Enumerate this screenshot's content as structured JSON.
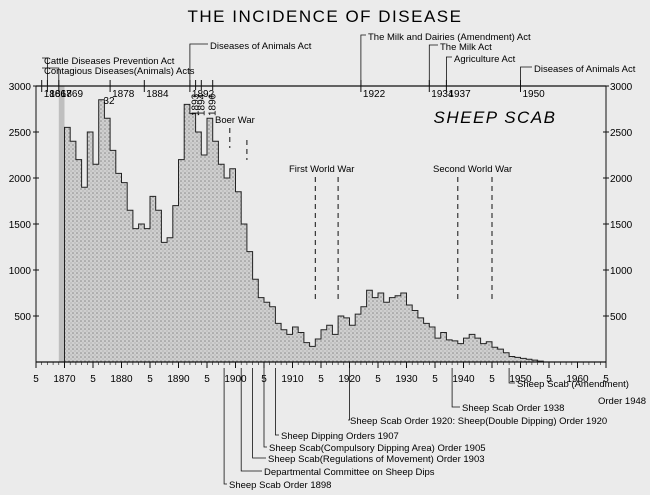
{
  "chart_data": {
    "type": "bar",
    "title": "THE INCIDENCE OF DISEASE",
    "series_label": "SHEEP SCAB",
    "xlabel": "",
    "ylabel": "",
    "ylim": [
      0,
      3000
    ],
    "xlim": [
      1865,
      1965
    ],
    "grid": false,
    "y_ticks": [
      {
        "v": 500,
        "label": "500"
      },
      {
        "v": 1000,
        "label": "1000"
      },
      {
        "v": 1500,
        "label": "1500"
      },
      {
        "v": 2000,
        "label": "2000"
      },
      {
        "v": 2500,
        "label": "2500"
      },
      {
        "v": 3000,
        "label": "3000"
      }
    ],
    "x_ticks": [
      {
        "v": 1865,
        "label": "5"
      },
      {
        "v": 1870,
        "label": "1870"
      },
      {
        "v": 1875,
        "label": "5"
      },
      {
        "v": 1880,
        "label": "1880"
      },
      {
        "v": 1885,
        "label": "5"
      },
      {
        "v": 1890,
        "label": "1890"
      },
      {
        "v": 1895,
        "label": "5"
      },
      {
        "v": 1900,
        "label": "1900"
      },
      {
        "v": 1905,
        "label": "5"
      },
      {
        "v": 1910,
        "label": "1910"
      },
      {
        "v": 1915,
        "label": "5"
      },
      {
        "v": 1920,
        "label": "1920"
      },
      {
        "v": 1925,
        "label": "5"
      },
      {
        "v": 1930,
        "label": "1930"
      },
      {
        "v": 1935,
        "label": "5"
      },
      {
        "v": 1940,
        "label": "1940"
      },
      {
        "v": 1945,
        "label": "5"
      },
      {
        "v": 1950,
        "label": "1950"
      },
      {
        "v": 1955,
        "label": "5"
      },
      {
        "v": 1960,
        "label": "1960"
      },
      {
        "v": 1965,
        "label": "5"
      }
    ],
    "series": [
      {
        "x": [
          1867,
          1868,
          1869,
          1870,
          1871,
          1872,
          1873,
          1874,
          1875,
          1876,
          1877,
          1878,
          1879,
          1880,
          1881,
          1882,
          1883,
          1884,
          1885,
          1886,
          1887,
          1888,
          1889,
          1890,
          1891,
          1892,
          1893,
          1894,
          1895,
          1896,
          1897,
          1898,
          1899,
          1900,
          1901,
          1902,
          1903,
          1904,
          1905,
          1906,
          1907,
          1908,
          1909,
          1910,
          1911,
          1912,
          1913,
          1914,
          1915,
          1916,
          1917,
          1918,
          1919,
          1920,
          1921,
          1922,
          1923,
          1924,
          1925,
          1926,
          1927,
          1928,
          1929,
          1930,
          1931,
          1932,
          1933,
          1934,
          1935,
          1936,
          1937,
          1938,
          1939,
          1940,
          1941,
          1942,
          1943,
          1944,
          1945,
          1946,
          1947,
          1948,
          1949,
          1950,
          1951,
          1952,
          1953
        ],
        "values": [
          0,
          0,
          0,
          2550,
          2400,
          2200,
          1900,
          2500,
          2150,
          2850,
          2650,
          2300,
          2050,
          1950,
          1650,
          1450,
          1500,
          1450,
          1800,
          1650,
          1300,
          1350,
          1700,
          2200,
          2800,
          2700,
          2500,
          2250,
          2650,
          2400,
          2150,
          2000,
          2100,
          1850,
          1500,
          1200,
          900,
          700,
          650,
          600,
          420,
          350,
          300,
          380,
          320,
          210,
          170,
          250,
          350,
          400,
          300,
          500,
          480,
          400,
          520,
          600,
          780,
          700,
          750,
          650,
          700,
          720,
          750,
          620,
          560,
          480,
          420,
          380,
          260,
          320,
          240,
          230,
          200,
          260,
          300,
          260,
          200,
          220,
          160,
          140,
          100,
          60,
          50,
          40,
          30,
          20,
          10
        ]
      }
    ],
    "top_axis": [
      {
        "year": 1866,
        "label": "1866"
      },
      {
        "year": 1867,
        "label": "1867"
      },
      {
        "year": 1869,
        "label": "1869"
      },
      {
        "year": 1878,
        "label": "1878"
      },
      {
        "year": 1884,
        "label": "1884"
      },
      {
        "year": 1892,
        "label": "1892"
      },
      {
        "year": 1922,
        "label": "1922"
      },
      {
        "year": 1934,
        "label": "1934"
      },
      {
        "year": 1937,
        "label": "1937"
      },
      {
        "year": 1950,
        "label": "1950"
      }
    ],
    "top_axis_vertical": [
      {
        "year": 1896,
        "label": "1896"
      },
      {
        "year": 1894,
        "label": "1894"
      },
      {
        "year": 1893,
        "label": "1893"
      }
    ],
    "top_axis_small": {
      "year": 1877,
      "label": "32"
    },
    "acts": [
      {
        "label": "Cattle Diseases Prevention Act"
      },
      {
        "label": "Contagious Diseases(Animals) Acts"
      },
      {
        "label": "Diseases of Animals Act"
      },
      {
        "label": "The Milk and Dairies (Amendment) Act"
      },
      {
        "label": "The Milk Act"
      },
      {
        "label": "Agriculture Act"
      },
      {
        "label": "Diseases of Animals Act"
      }
    ],
    "wars": [
      {
        "label": "Boer War"
      },
      {
        "label": "First World War"
      },
      {
        "label": "Second World War"
      }
    ],
    "orders": [
      {
        "label": "Sheep Scab (Amendment)"
      },
      {
        "label": "Order 1948"
      },
      {
        "label": "Sheep Scab Order 1938"
      },
      {
        "label": "Sheep Scab Order 1920: Sheep(Double Dipping) Order 1920"
      },
      {
        "label": "Sheep Dipping Orders 1907"
      },
      {
        "label": "Sheep Scab(Compulsory Dipping Area) Order 1905"
      },
      {
        "label": "Sheep Scab(Regulations of Movement) Order 1903"
      },
      {
        "label": "Departmental Committee on Sheep Dips"
      },
      {
        "label": "Sheep Scab Order 1898"
      }
    ]
  }
}
